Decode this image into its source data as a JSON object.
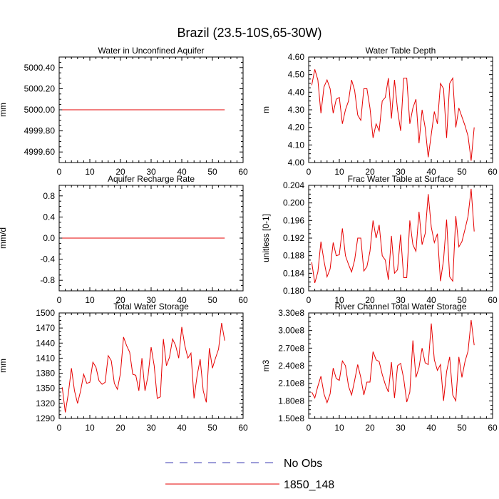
{
  "figure": {
    "title": "Brazil (23.5-10S,65-30W)",
    "legend": [
      {
        "label": "No Obs",
        "color": "#3b3bb3",
        "style": "dashed"
      },
      {
        "label": "1850_148",
        "color": "#e60000",
        "style": "solid"
      }
    ]
  },
  "chart_data": [
    {
      "type": "line",
      "title": "Water in Unconfined Aquifer",
      "ylabel": "mm",
      "xlim": [
        0,
        60
      ],
      "ylim": [
        4999.5,
        5000.5
      ],
      "xticks": [
        0,
        10,
        20,
        30,
        40,
        50,
        60
      ],
      "xtick_labels": [
        "0",
        "10",
        "20",
        "30",
        "40",
        "50",
        "60"
      ],
      "yticks": [
        4999.6,
        4999.8,
        5000.0,
        5000.2,
        5000.4
      ],
      "ytick_labels": [
        "4999.60",
        "4999.80",
        "5000.00",
        "5000.20",
        "5000.40"
      ],
      "series": [
        {
          "name": "1850_148",
          "color": "#e60000",
          "x": [
            1,
            54
          ],
          "values": [
            5000.0,
            5000.0
          ]
        }
      ]
    },
    {
      "type": "line",
      "title": "Water Table Depth",
      "ylabel": "m",
      "xlim": [
        0,
        60
      ],
      "ylim": [
        4.0,
        4.6
      ],
      "xticks": [
        0,
        10,
        20,
        30,
        40,
        50,
        60
      ],
      "xtick_labels": [
        "0",
        "10",
        "20",
        "30",
        "40",
        "50",
        "60"
      ],
      "yticks": [
        4.0,
        4.1,
        4.2,
        4.3,
        4.4,
        4.5,
        4.6
      ],
      "ytick_labels": [
        "4.00",
        "4.10",
        "4.20",
        "4.30",
        "4.40",
        "4.50",
        "4.60"
      ],
      "series": [
        {
          "name": "1850_148",
          "color": "#e60000",
          "x": [
            1,
            2,
            3,
            4,
            5,
            6,
            7,
            8,
            9,
            10,
            11,
            12,
            13,
            14,
            15,
            16,
            17,
            18,
            19,
            20,
            21,
            22,
            23,
            24,
            25,
            26,
            27,
            28,
            29,
            30,
            31,
            32,
            33,
            34,
            35,
            36,
            37,
            38,
            39,
            40,
            41,
            42,
            43,
            44,
            45,
            46,
            47,
            48,
            49,
            50,
            51,
            52,
            53,
            54
          ],
          "values": [
            4.44,
            4.53,
            4.47,
            4.28,
            4.43,
            4.47,
            4.42,
            4.28,
            4.36,
            4.37,
            4.22,
            4.3,
            4.35,
            4.47,
            4.41,
            4.27,
            4.24,
            4.42,
            4.42,
            4.31,
            4.14,
            4.22,
            4.18,
            4.35,
            4.37,
            4.48,
            4.25,
            4.47,
            4.3,
            4.18,
            4.48,
            4.48,
            4.22,
            4.31,
            4.36,
            4.11,
            4.3,
            4.2,
            4.03,
            4.16,
            4.29,
            4.22,
            4.45,
            4.42,
            4.14,
            4.45,
            4.48,
            4.2,
            4.31,
            4.26,
            4.21,
            4.15,
            4.01,
            4.2
          ]
        }
      ]
    },
    {
      "type": "line",
      "title": "Aquifer Recharge Rate",
      "ylabel": "mm/d",
      "xlim": [
        0,
        60
      ],
      "ylim": [
        -1.0,
        1.0
      ],
      "xticks": [
        0,
        10,
        20,
        30,
        40,
        50,
        60
      ],
      "xtick_labels": [
        "0",
        "10",
        "20",
        "30",
        "40",
        "50",
        "60"
      ],
      "yticks": [
        -0.8,
        -0.4,
        0.0,
        0.4,
        0.8
      ],
      "ytick_labels": [
        "-0.8",
        "-0.4",
        "0.0",
        "0.4",
        "0.8"
      ],
      "series": [
        {
          "name": "1850_148",
          "color": "#e60000",
          "x": [
            1,
            54
          ],
          "values": [
            0.0,
            0.0
          ]
        }
      ]
    },
    {
      "type": "line",
      "title": "Frac Water Table at Surface",
      "ylabel": "unitless [0-1]",
      "xlim": [
        0,
        60
      ],
      "ylim": [
        0.18,
        0.204
      ],
      "xticks": [
        0,
        10,
        20,
        30,
        40,
        50,
        60
      ],
      "xtick_labels": [
        "0",
        "10",
        "20",
        "30",
        "40",
        "50",
        "60"
      ],
      "yticks": [
        0.18,
        0.184,
        0.188,
        0.192,
        0.196,
        0.2,
        0.204
      ],
      "ytick_labels": [
        "0.180",
        "0.184",
        "0.188",
        "0.192",
        "0.196",
        "0.200",
        "0.204"
      ],
      "series": [
        {
          "name": "1850_148",
          "color": "#e60000",
          "x": [
            1,
            2,
            3,
            4,
            5,
            6,
            7,
            8,
            9,
            10,
            11,
            12,
            13,
            14,
            15,
            16,
            17,
            18,
            19,
            20,
            21,
            22,
            23,
            24,
            25,
            26,
            27,
            28,
            29,
            30,
            31,
            32,
            33,
            34,
            35,
            36,
            37,
            38,
            39,
            40,
            41,
            42,
            43,
            44,
            45,
            46,
            47,
            48,
            49,
            50,
            51,
            52,
            53,
            54
          ],
          "values": [
            0.1865,
            0.1818,
            0.1843,
            0.1912,
            0.1868,
            0.1832,
            0.185,
            0.191,
            0.188,
            0.1882,
            0.1942,
            0.188,
            0.186,
            0.1843,
            0.187,
            0.192,
            0.192,
            0.1845,
            0.1855,
            0.189,
            0.196,
            0.192,
            0.195,
            0.188,
            0.187,
            0.1825,
            0.1925,
            0.184,
            0.1848,
            0.1928,
            0.183,
            0.183,
            0.196,
            0.1905,
            0.189,
            0.198,
            0.1905,
            0.193,
            0.202,
            0.1945,
            0.191,
            0.193,
            0.1822,
            0.187,
            0.1962,
            0.1832,
            0.1822,
            0.197,
            0.19,
            0.1912,
            0.194,
            0.197,
            0.2032,
            0.1935
          ]
        }
      ]
    },
    {
      "type": "line",
      "title": "Total Water Storage",
      "ylabel": "mm",
      "xlim": [
        0,
        60
      ],
      "ylim": [
        1290,
        1500
      ],
      "xticks": [
        0,
        10,
        20,
        30,
        40,
        50,
        60
      ],
      "xtick_labels": [
        "0",
        "10",
        "20",
        "30",
        "40",
        "50",
        "60"
      ],
      "yticks": [
        1290,
        1320,
        1350,
        1380,
        1410,
        1440,
        1470,
        1500
      ],
      "ytick_labels": [
        "1290",
        "1320",
        "1350",
        "1380",
        "1410",
        "1440",
        "1470",
        "1500"
      ],
      "series": [
        {
          "name": "1850_148",
          "color": "#e60000",
          "x": [
            1,
            2,
            3,
            4,
            5,
            6,
            7,
            8,
            9,
            10,
            11,
            12,
            13,
            14,
            15,
            16,
            17,
            18,
            19,
            20,
            21,
            22,
            23,
            24,
            25,
            26,
            27,
            28,
            29,
            30,
            31,
            32,
            33,
            34,
            35,
            36,
            37,
            38,
            39,
            40,
            41,
            42,
            43,
            44,
            45,
            46,
            47,
            48,
            49,
            50,
            51,
            52,
            53,
            54
          ],
          "values": [
            1352,
            1302,
            1340,
            1390,
            1345,
            1320,
            1345,
            1378,
            1360,
            1362,
            1402,
            1392,
            1365,
            1358,
            1362,
            1415,
            1405,
            1360,
            1348,
            1380,
            1452,
            1435,
            1422,
            1378,
            1376,
            1345,
            1410,
            1345,
            1375,
            1432,
            1395,
            1330,
            1333,
            1448,
            1395,
            1412,
            1448,
            1435,
            1410,
            1472,
            1435,
            1410,
            1420,
            1330,
            1375,
            1408,
            1345,
            1322,
            1430,
            1390,
            1410,
            1428,
            1480,
            1445
          ]
        }
      ]
    },
    {
      "type": "line",
      "title": "River Channel Total Water Storage",
      "ylabel": "m3",
      "xlim": [
        0,
        60
      ],
      "ylim": [
        150000000,
        330000000
      ],
      "xticks": [
        0,
        10,
        20,
        30,
        40,
        50,
        60
      ],
      "xtick_labels": [
        "0",
        "10",
        "20",
        "30",
        "40",
        "50",
        "60"
      ],
      "yticks": [
        150000000,
        180000000,
        210000000,
        240000000,
        270000000,
        300000000,
        330000000
      ],
      "ytick_labels": [
        "1.50e8",
        "1.80e8",
        "2.10e8",
        "2.40e8",
        "2.70e8",
        "3.00e8",
        "3.30e8"
      ],
      "series": [
        {
          "name": "1850_148",
          "color": "#e60000",
          "x": [
            1,
            2,
            3,
            4,
            5,
            6,
            7,
            8,
            9,
            10,
            11,
            12,
            13,
            14,
            15,
            16,
            17,
            18,
            19,
            20,
            21,
            22,
            23,
            24,
            25,
            26,
            27,
            28,
            29,
            30,
            31,
            32,
            33,
            34,
            35,
            36,
            37,
            38,
            39,
            40,
            41,
            42,
            43,
            44,
            45,
            46,
            47,
            48,
            49,
            50,
            51,
            52,
            53,
            54
          ],
          "values": [
            195000000,
            185000000,
            205000000,
            222000000,
            192000000,
            177000000,
            192000000,
            236000000,
            218000000,
            215000000,
            248000000,
            240000000,
            205000000,
            190000000,
            215000000,
            242000000,
            220000000,
            190000000,
            212000000,
            212000000,
            264000000,
            250000000,
            247000000,
            225000000,
            208000000,
            195000000,
            246000000,
            185000000,
            240000000,
            244000000,
            218000000,
            178000000,
            195000000,
            283000000,
            220000000,
            237000000,
            270000000,
            245000000,
            242000000,
            312000000,
            250000000,
            232000000,
            242000000,
            180000000,
            230000000,
            255000000,
            190000000,
            180000000,
            255000000,
            220000000,
            247000000,
            265000000,
            318000000,
            275000000
          ]
        }
      ]
    }
  ]
}
